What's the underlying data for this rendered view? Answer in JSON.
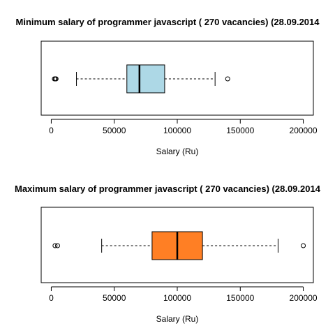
{
  "chart_data": [
    {
      "type": "boxplot",
      "title": "Minimum salary of programmer  javascript ( 270  vacancies)  (28.09.2014",
      "xlabel": "Salary (Ru)",
      "xlim": [
        -8000,
        208000
      ],
      "ticks": [
        0,
        50000,
        100000,
        150000,
        200000
      ],
      "tick_labels": [
        "0",
        "50000",
        "100000",
        "150000",
        "200000"
      ],
      "box_color": "#add8e6",
      "stats": {
        "whisker_low": 20000,
        "q1": 60000,
        "median": 70000,
        "q3": 90000,
        "whisker_high": 130000
      },
      "outliers": [
        2500,
        3200,
        3800,
        140000
      ]
    },
    {
      "type": "boxplot",
      "title": "Maximum salary of programmer  javascript ( 270  vacancies)  (28.09.2014",
      "xlabel": "Salary (Ru)",
      "xlim": [
        -8000,
        208000
      ],
      "ticks": [
        0,
        50000,
        100000,
        150000,
        200000
      ],
      "tick_labels": [
        "0",
        "50000",
        "100000",
        "150000",
        "200000"
      ],
      "box_color": "#ff7f24",
      "stats": {
        "whisker_low": 40000,
        "q1": 80000,
        "median": 100000,
        "q3": 120000,
        "whisker_high": 180000
      },
      "outliers": [
        3000,
        5000,
        200000
      ]
    }
  ]
}
